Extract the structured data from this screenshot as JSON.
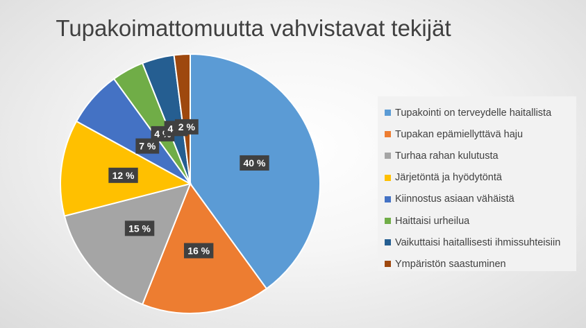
{
  "chart_data": {
    "type": "pie",
    "title": "Tupakoimattomuutta vahvistavat tekijät",
    "slices": [
      {
        "name": "Tupakointi on terveydelle haitallista",
        "value": 40,
        "label": "40 %",
        "color": "#5b9bd5"
      },
      {
        "name": "Tupakan epämiellyttävä haju",
        "value": 16,
        "label": "16 %",
        "color": "#ed7d31"
      },
      {
        "name": "Turhaa rahan kulutusta",
        "value": 15,
        "label": "15 %",
        "color": "#a5a5a5"
      },
      {
        "name": "Järjetöntä ja hyödytöntä",
        "value": 12,
        "label": "12 %",
        "color": "#ffc000"
      },
      {
        "name": "Kiinnostus asiaan vähäistä",
        "value": 7,
        "label": "7 %",
        "color": "#4472c4"
      },
      {
        "name": "Haittaisi urheilua",
        "value": 4,
        "label": "4 %",
        "color": "#70ad47"
      },
      {
        "name": "Vaikuttaisi haitallisesti ihmissuhteisiin",
        "value": 4,
        "label": "4 %",
        "color": "#255e91"
      },
      {
        "name": "Ympäristön saastuminen",
        "value": 2,
        "label": "2 %",
        "color": "#9e480e"
      }
    ],
    "legend_position": "right"
  }
}
